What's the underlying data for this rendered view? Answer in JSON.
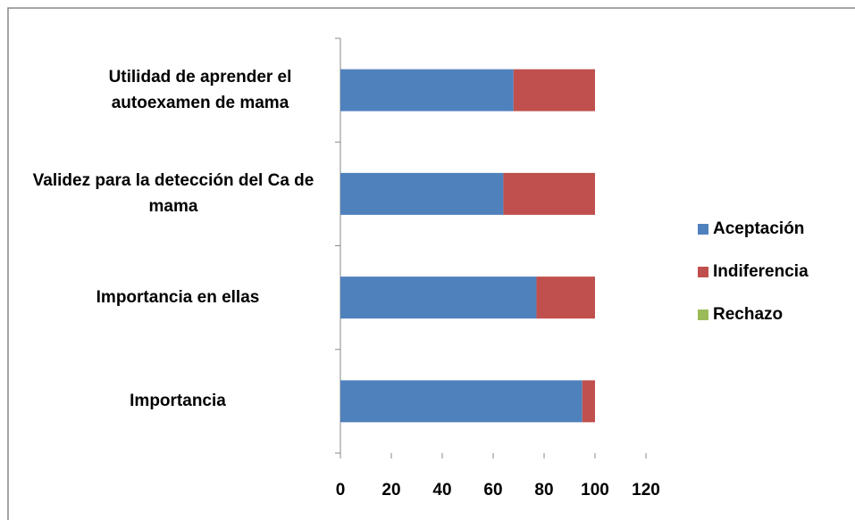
{
  "chart_data": {
    "type": "stacked-barh",
    "categories": [
      "Importancia",
      "Importancia en ellas",
      "Validez para la detección del Ca de mama",
      "Utilidad de aprender el autoexamen de mama"
    ],
    "series": [
      {
        "name": "Aceptación",
        "color": "#4f81bd",
        "values": [
          95,
          77,
          64,
          68
        ]
      },
      {
        "name": "Indiferencia",
        "color": "#c0504d",
        "values": [
          5,
          23,
          36,
          32
        ]
      },
      {
        "name": "Rechazo",
        "color": "#9bbb59",
        "values": [
          0,
          0,
          0,
          0
        ]
      }
    ],
    "xlim": [
      0,
      120
    ],
    "xticks": [
      0,
      20,
      40,
      60,
      80,
      100,
      120
    ],
    "legend": "right"
  }
}
